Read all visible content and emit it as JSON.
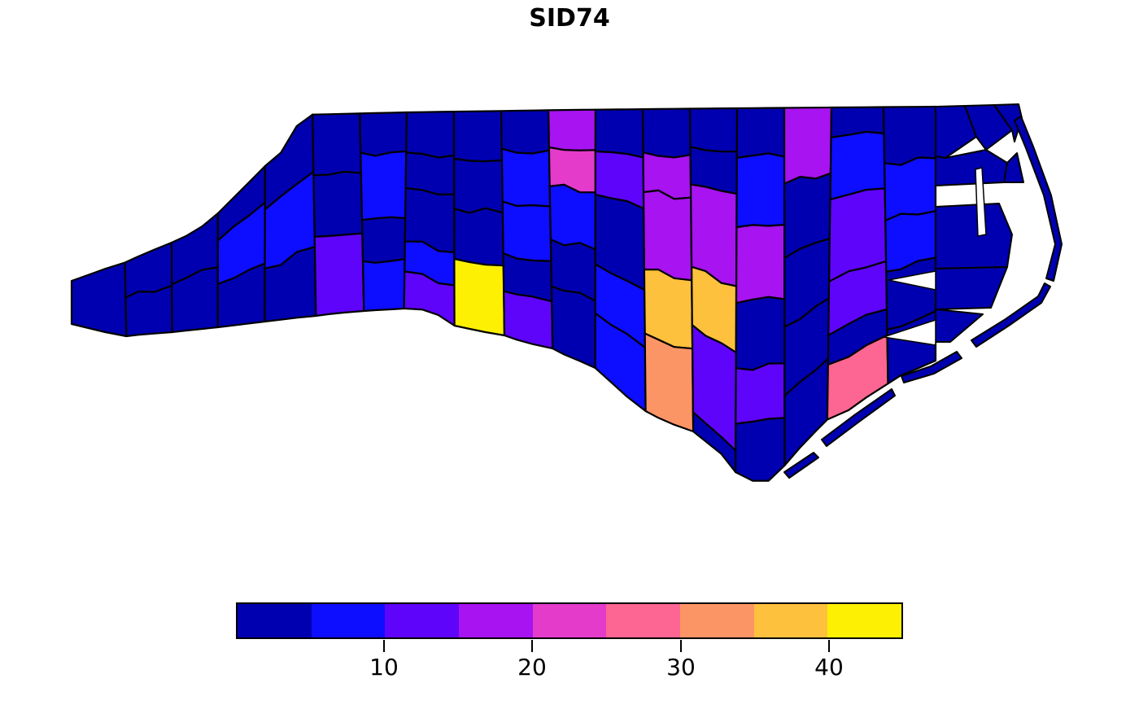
{
  "title": "SID74",
  "palette": [
    "#0000B0",
    "#0D0DFF",
    "#5E04FA",
    "#A713F1",
    "#E43BCB",
    "#FD6592",
    "#FC9566",
    "#FEC13D",
    "#FDF003"
  ],
  "colorbar": {
    "ticks": [
      "10",
      "20",
      "30",
      "40"
    ],
    "bins": [
      {
        "range": "0-5"
      },
      {
        "range": "5-10"
      },
      {
        "range": "10-15"
      },
      {
        "range": "15-20"
      },
      {
        "range": "20-25"
      },
      {
        "range": "25-30"
      },
      {
        "range": "30-35"
      },
      {
        "range": "35-40"
      },
      {
        "range": "40-45"
      }
    ]
  },
  "map": {
    "outline_color": "#000000",
    "water_color": "#ffffff",
    "columns": [
      [
        0
      ],
      [
        0,
        0
      ],
      [
        0,
        0
      ],
      [
        0,
        1,
        0
      ],
      [
        0,
        1,
        0
      ],
      [
        0,
        0,
        2
      ],
      [
        0,
        1,
        0,
        1
      ],
      [
        0,
        0,
        0,
        1,
        2
      ],
      [
        0,
        0,
        0,
        8
      ],
      [
        0,
        1,
        1,
        0,
        2
      ],
      [
        3,
        4,
        1,
        0,
        0
      ],
      [
        0,
        2,
        0,
        1,
        1
      ],
      [
        0,
        3,
        3,
        7,
        6
      ],
      [
        0,
        0,
        3,
        7,
        2,
        0
      ],
      [
        0,
        1,
        3,
        0,
        2,
        0
      ],
      [
        3,
        0,
        0,
        0,
        0
      ],
      [
        0,
        1,
        2,
        2,
        0,
        5
      ],
      [
        0,
        1,
        1,
        0,
        0
      ]
    ],
    "east_counties": [
      0,
      0,
      0,
      0,
      0,
      0,
      0,
      0,
      0,
      0,
      0,
      0,
      0
    ]
  },
  "chart_data": {
    "type": "choropleth",
    "title": "SID74",
    "legend_ticks": [
      10,
      20,
      30,
      40
    ],
    "value_domain": [
      0,
      45
    ],
    "bin_breaks": [
      0,
      5,
      10,
      15,
      20,
      25,
      30,
      35,
      40,
      45
    ],
    "n_bins": 9,
    "legend_position": "bottom",
    "region_shape": "county polygons with black borders on white background"
  }
}
